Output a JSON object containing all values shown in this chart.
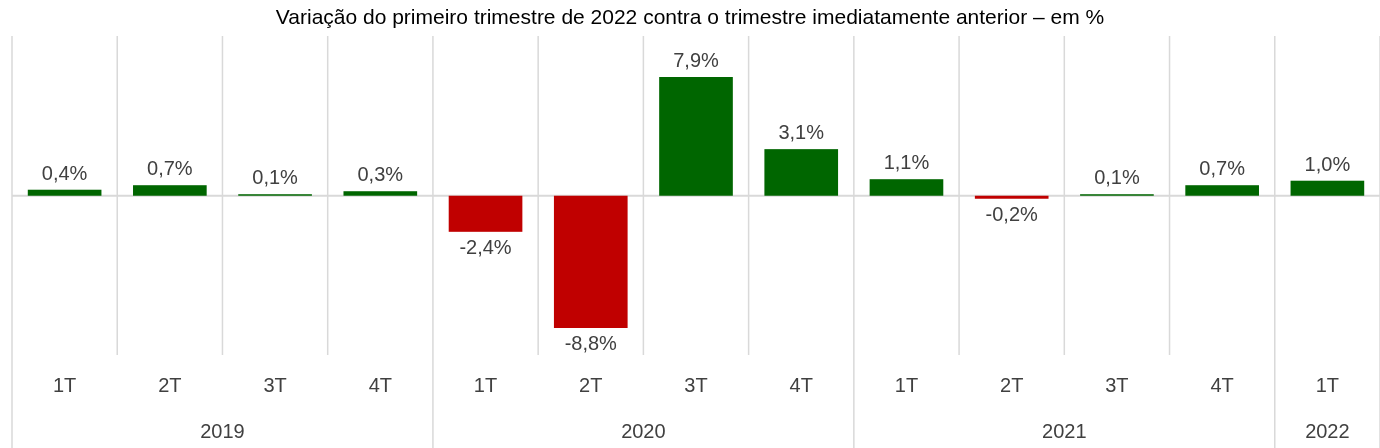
{
  "chart_data": {
    "type": "bar",
    "title": "Variação do primeiro trimestre de 2022 contra o trimestre imediatamente anterior – em %",
    "categories": [
      "1T",
      "2T",
      "3T",
      "4T",
      "1T",
      "2T",
      "3T",
      "4T",
      "1T",
      "2T",
      "3T",
      "4T",
      "1T"
    ],
    "values": [
      0.4,
      0.7,
      0.1,
      0.3,
      -2.4,
      -8.8,
      7.9,
      3.1,
      1.1,
      -0.2,
      0.1,
      0.7,
      1.0
    ],
    "colors": [
      "#006600",
      "#006600",
      "#006600",
      "#006600",
      "#c00000",
      "#c00000",
      "#006600",
      "#006600",
      "#006600",
      "#c00000",
      "#006600",
      "#006600",
      "#006600"
    ],
    "value_labels": [
      "0,4%",
      "0,7%",
      "0,1%",
      "0,3%",
      "-2,4%",
      "-8,8%",
      "7,9%",
      "3,1%",
      "1,1%",
      "-0,2%",
      "0,1%",
      "0,7%",
      "1,0%"
    ],
    "annotations": [
      "2019",
      "2020",
      "2021",
      "2022"
    ]
  }
}
